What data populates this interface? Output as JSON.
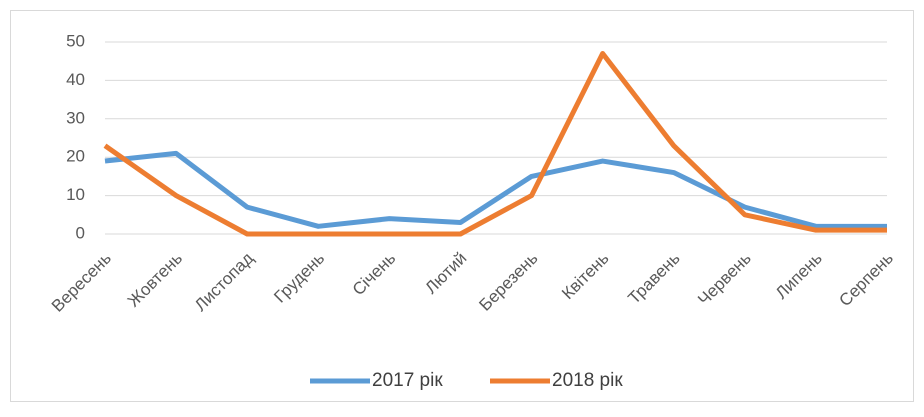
{
  "chart_data": {
    "type": "line",
    "categories": [
      "Вересень",
      "Жовтень",
      "Листопад",
      "Грудень",
      "Січень",
      "Лютий",
      "Березень",
      "Квітень",
      "Травень",
      "Червень",
      "Липень",
      "Серпень"
    ],
    "series": [
      {
        "name": "2017 рік",
        "color": "#5b9bd5",
        "values": [
          19,
          21,
          7,
          2,
          4,
          3,
          15,
          19,
          16,
          7,
          2,
          2
        ]
      },
      {
        "name": "2018 рік",
        "color": "#ed7d31",
        "values": [
          23,
          10,
          0,
          0,
          0,
          0,
          10,
          47,
          23,
          5,
          1,
          1
        ]
      }
    ],
    "ylim": [
      0,
      50
    ],
    "yticks": [
      0,
      10,
      20,
      30,
      40,
      50
    ],
    "grid": true,
    "legend": "bottom"
  }
}
